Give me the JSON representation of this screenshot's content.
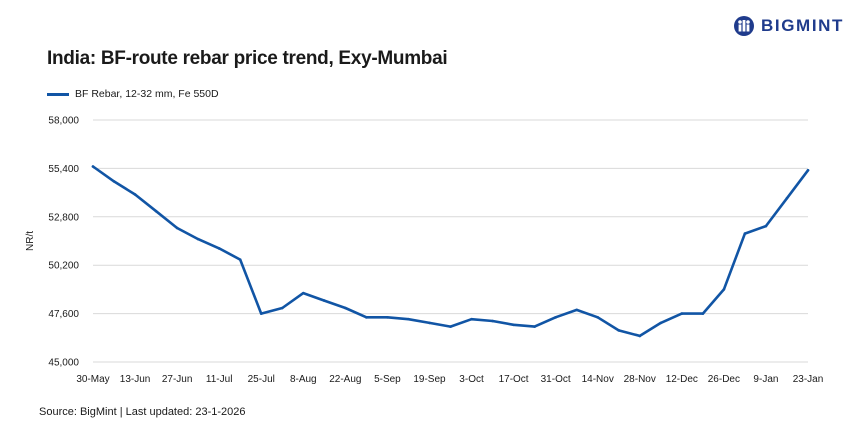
{
  "title": "India: BF-route rebar price trend, Exy-Mumbai",
  "brand": "BIGMINT",
  "source": "Source: BigMint | Last updated: 23-1-2026",
  "colors": {
    "series": "#1155a5",
    "grid": "#d9d9d9",
    "brand": "#1f3b8c"
  },
  "chart_data": {
    "type": "line",
    "title": "India: BF-route rebar price trend, Exy-Mumbai",
    "xlabel": "",
    "ylabel": "NR/t",
    "ylim": [
      45000,
      58000
    ],
    "yticks": [
      45000,
      47600,
      50200,
      52800,
      55400,
      58000
    ],
    "ytick_labels": [
      "45,000",
      "47,600",
      "50,200",
      "52,800",
      "55,400",
      "58,000"
    ],
    "grid": true,
    "legend_position": "top-left",
    "x_tick_labels": [
      "30-May",
      "13-Jun",
      "27-Jun",
      "11-Jul",
      "25-Jul",
      "8-Aug",
      "22-Aug",
      "5-Sep",
      "19-Sep",
      "3-Oct",
      "17-Oct",
      "31-Oct",
      "14-Nov",
      "28-Nov",
      "12-Dec",
      "26-Dec",
      "9-Jan",
      "23-Jan"
    ],
    "x": [
      "30-May",
      "6-Jun",
      "13-Jun",
      "20-Jun",
      "27-Jun",
      "4-Jul",
      "11-Jul",
      "18-Jul",
      "25-Jul",
      "1-Aug",
      "8-Aug",
      "15-Aug",
      "22-Aug",
      "29-Aug",
      "5-Sep",
      "12-Sep",
      "19-Sep",
      "26-Sep",
      "3-Oct",
      "10-Oct",
      "17-Oct",
      "24-Oct",
      "31-Oct",
      "7-Nov",
      "14-Nov",
      "21-Nov",
      "28-Nov",
      "5-Dec",
      "12-Dec",
      "19-Dec",
      "26-Dec",
      "2-Jan",
      "9-Jan",
      "16-Jan",
      "23-Jan"
    ],
    "series": [
      {
        "name": "BF Rebar, 12-32 mm, Fe 550D",
        "values": [
          55500,
          54700,
          54000,
          53100,
          52200,
          51600,
          51100,
          50500,
          47600,
          47900,
          48700,
          48300,
          47900,
          47400,
          47400,
          47300,
          47100,
          46900,
          47300,
          47200,
          47000,
          46900,
          47400,
          47800,
          47400,
          46700,
          46400,
          47100,
          47600,
          47600,
          48900,
          51900,
          52300,
          53800,
          55300
        ]
      }
    ]
  }
}
